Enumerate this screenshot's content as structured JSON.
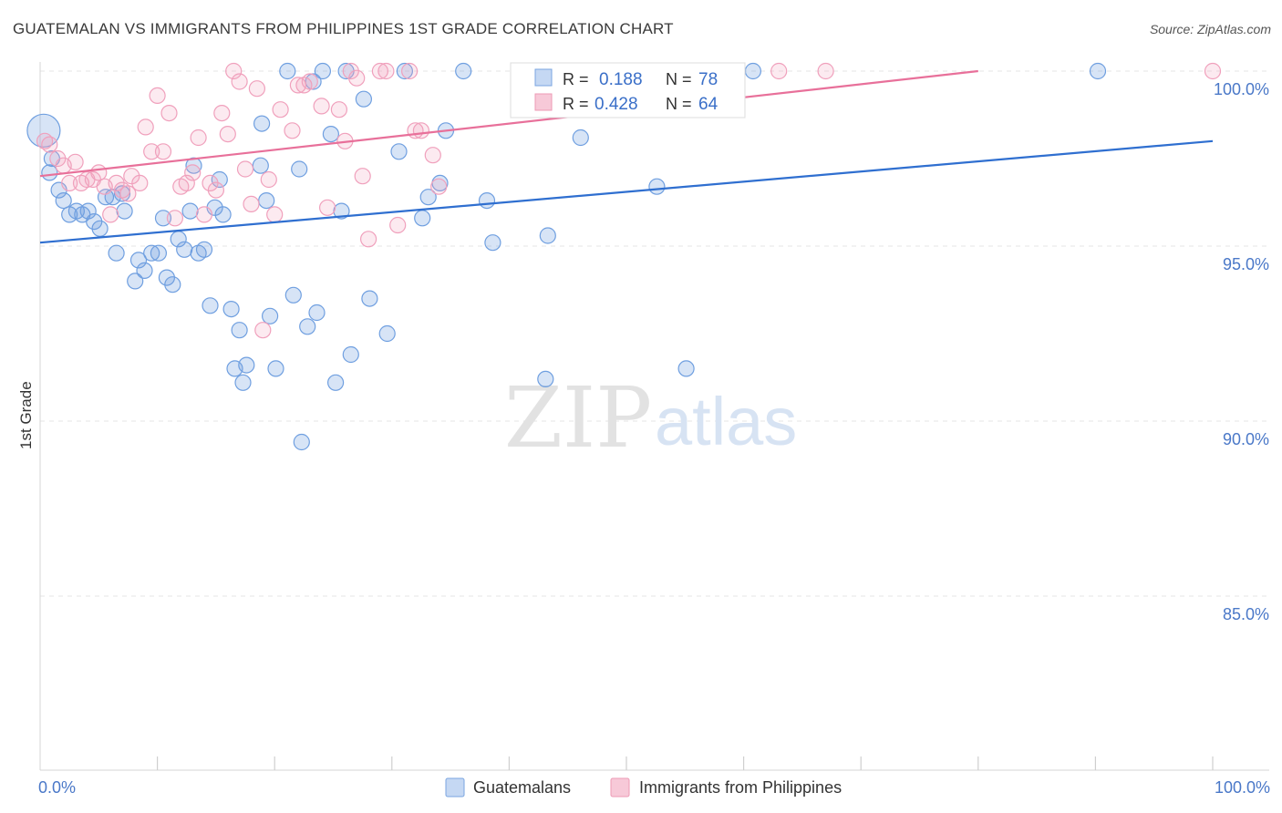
{
  "header": {
    "title": "GUATEMALAN VS IMMIGRANTS FROM PHILIPPINES 1ST GRADE CORRELATION CHART",
    "source": "Source: ZipAtlas.com"
  },
  "watermark": {
    "zip": "ZIP",
    "atlas": "atlas"
  },
  "colors": {
    "blue": "#6f9fe0",
    "blue_line": "#2f6fd0",
    "pink": "#f0a0bc",
    "pink_line": "#e8709a",
    "axis_text": "#4a78c8"
  },
  "legend_box": {
    "rows": [
      {
        "r_label": "R = ",
        "r_value": "0.188",
        "n_label": "N = ",
        "n_value": "78"
      },
      {
        "r_label": "R = ",
        "r_value": "0.428",
        "n_label": "N = ",
        "n_value": "64"
      }
    ]
  },
  "bottom_legend": [
    "Guatemalans",
    "Immigrants from Philippines"
  ],
  "chart_data": {
    "type": "scatter",
    "title": "GUATEMALAN VS IMMIGRANTS FROM PHILIPPINES 1ST GRADE CORRELATION CHART",
    "ylabel": "1st Grade",
    "xlabel": "",
    "x_tick_labels": [
      "0.0%",
      "100.0%"
    ],
    "y_tick_labels": [
      "100.0%",
      "95.0%",
      "90.0%",
      "85.0%"
    ],
    "y_ticks": [
      100,
      95,
      90,
      85
    ],
    "xlim": [
      0,
      100
    ],
    "ylim": [
      80.3,
      100.3
    ],
    "grid": true,
    "series": [
      {
        "name": "Guatemalans",
        "r": 0.188,
        "n": 78,
        "trend": {
          "x": [
            0,
            100
          ],
          "y": [
            95.1,
            98.0
          ]
        },
        "points": [
          [
            0.3,
            98.3
          ],
          [
            0.8,
            97.1
          ],
          [
            1.0,
            97.5
          ],
          [
            1.6,
            96.6
          ],
          [
            2.0,
            96.3
          ],
          [
            2.5,
            95.9
          ],
          [
            3.1,
            96.0
          ],
          [
            3.6,
            95.9
          ],
          [
            4.1,
            96.0
          ],
          [
            4.6,
            95.7
          ],
          [
            5.1,
            95.5
          ],
          [
            5.6,
            96.4
          ],
          [
            6.2,
            96.4
          ],
          [
            7.0,
            96.5
          ],
          [
            7.2,
            96.0
          ],
          [
            6.5,
            94.8
          ],
          [
            8.1,
            94.0
          ],
          [
            8.4,
            94.6
          ],
          [
            8.9,
            94.3
          ],
          [
            9.5,
            94.8
          ],
          [
            10.1,
            94.8
          ],
          [
            10.5,
            95.8
          ],
          [
            10.8,
            94.1
          ],
          [
            11.3,
            93.9
          ],
          [
            11.8,
            95.2
          ],
          [
            12.3,
            94.9
          ],
          [
            12.8,
            96.0
          ],
          [
            13.1,
            97.3
          ],
          [
            13.5,
            94.8
          ],
          [
            14.0,
            94.9
          ],
          [
            14.5,
            93.3
          ],
          [
            14.9,
            96.1
          ],
          [
            15.3,
            96.9
          ],
          [
            15.6,
            95.9
          ],
          [
            16.3,
            93.2
          ],
          [
            16.6,
            91.5
          ],
          [
            17.0,
            92.6
          ],
          [
            17.3,
            91.1
          ],
          [
            17.6,
            91.6
          ],
          [
            18.8,
            97.3
          ],
          [
            18.9,
            98.5
          ],
          [
            19.3,
            96.3
          ],
          [
            19.6,
            93.0
          ],
          [
            20.1,
            91.5
          ],
          [
            21.1,
            100.0
          ],
          [
            21.6,
            93.6
          ],
          [
            22.1,
            97.2
          ],
          [
            22.3,
            89.4
          ],
          [
            22.8,
            92.7
          ],
          [
            23.3,
            99.7
          ],
          [
            23.6,
            93.1
          ],
          [
            24.1,
            100.0
          ],
          [
            24.8,
            98.2
          ],
          [
            25.2,
            91.1
          ],
          [
            25.7,
            96.0
          ],
          [
            26.1,
            100.0
          ],
          [
            26.5,
            91.9
          ],
          [
            27.6,
            99.2
          ],
          [
            28.1,
            93.5
          ],
          [
            29.6,
            92.5
          ],
          [
            30.6,
            97.7
          ],
          [
            31.1,
            100.0
          ],
          [
            32.6,
            95.8
          ],
          [
            33.1,
            96.4
          ],
          [
            34.1,
            96.8
          ],
          [
            34.6,
            98.3
          ],
          [
            36.1,
            100.0
          ],
          [
            38.1,
            96.3
          ],
          [
            38.6,
            95.1
          ],
          [
            43.1,
            91.2
          ],
          [
            43.3,
            95.3
          ],
          [
            46.1,
            98.1
          ],
          [
            52.6,
            96.7
          ],
          [
            55.1,
            91.5
          ],
          [
            58.6,
            100.0
          ],
          [
            59.3,
            100.0
          ],
          [
            60.8,
            100.0
          ],
          [
            90.2,
            100.0
          ]
        ]
      },
      {
        "name": "Immigrants from Philippines",
        "r": 0.428,
        "n": 64,
        "trend": {
          "x": [
            0,
            80
          ],
          "y": [
            97.0,
            100.0
          ]
        },
        "points": [
          [
            0.4,
            98.0
          ],
          [
            0.8,
            97.9
          ],
          [
            1.5,
            97.5
          ],
          [
            2.0,
            97.3
          ],
          [
            2.5,
            96.8
          ],
          [
            3.0,
            97.4
          ],
          [
            3.5,
            96.8
          ],
          [
            4.0,
            96.9
          ],
          [
            4.5,
            96.9
          ],
          [
            5.0,
            97.1
          ],
          [
            5.5,
            96.7
          ],
          [
            6.0,
            95.9
          ],
          [
            6.5,
            96.8
          ],
          [
            7.0,
            96.6
          ],
          [
            7.5,
            96.5
          ],
          [
            7.8,
            97.0
          ],
          [
            8.5,
            96.8
          ],
          [
            9.0,
            98.4
          ],
          [
            9.5,
            97.7
          ],
          [
            10.0,
            99.3
          ],
          [
            10.5,
            97.7
          ],
          [
            11.0,
            98.8
          ],
          [
            11.5,
            95.8
          ],
          [
            12.0,
            96.7
          ],
          [
            12.5,
            96.8
          ],
          [
            13.0,
            97.1
          ],
          [
            13.5,
            98.1
          ],
          [
            14.0,
            95.9
          ],
          [
            14.5,
            96.8
          ],
          [
            15.0,
            96.6
          ],
          [
            15.5,
            98.8
          ],
          [
            16.0,
            98.2
          ],
          [
            16.5,
            100.0
          ],
          [
            17.0,
            99.7
          ],
          [
            17.5,
            97.2
          ],
          [
            18.0,
            96.2
          ],
          [
            18.5,
            99.5
          ],
          [
            19.0,
            92.6
          ],
          [
            19.5,
            96.9
          ],
          [
            20.0,
            95.9
          ],
          [
            20.5,
            98.9
          ],
          [
            21.5,
            98.3
          ],
          [
            22.0,
            99.6
          ],
          [
            22.5,
            99.6
          ],
          [
            23.0,
            99.7
          ],
          [
            24.0,
            99.0
          ],
          [
            24.5,
            96.1
          ],
          [
            25.5,
            98.9
          ],
          [
            26.0,
            98.0
          ],
          [
            26.5,
            100.0
          ],
          [
            27.0,
            99.8
          ],
          [
            27.5,
            97.0
          ],
          [
            28.0,
            95.2
          ],
          [
            29.0,
            100.0
          ],
          [
            29.5,
            100.0
          ],
          [
            30.5,
            95.6
          ],
          [
            31.5,
            100.0
          ],
          [
            32.0,
            98.3
          ],
          [
            32.5,
            98.3
          ],
          [
            33.5,
            97.6
          ],
          [
            34.0,
            96.7
          ],
          [
            63.0,
            100.0
          ],
          [
            67.0,
            100.0
          ],
          [
            100.0,
            100.0
          ]
        ]
      }
    ]
  }
}
